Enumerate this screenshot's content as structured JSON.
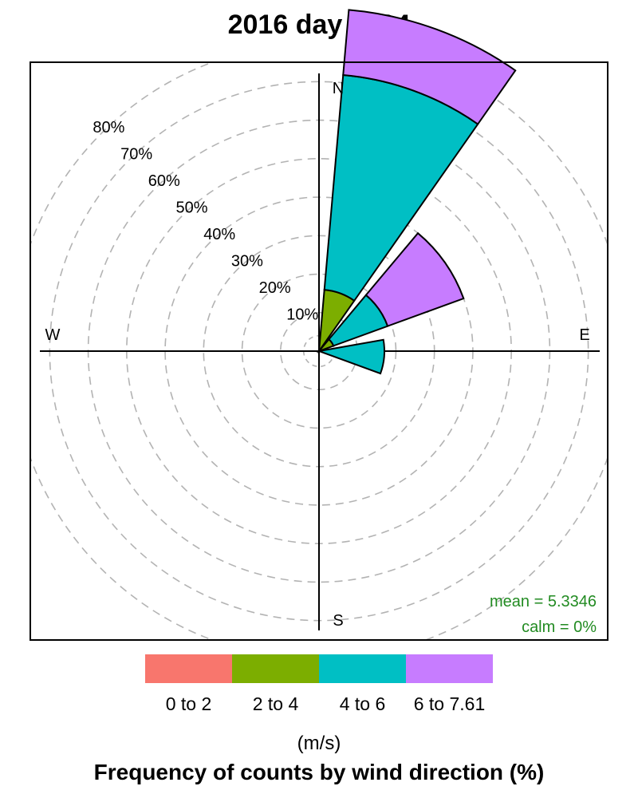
{
  "chart_data": {
    "type": "wind-rose",
    "title": "2016 day #294",
    "footer": "Frequency of counts by wind direction (%)",
    "units_label": "(m/s)",
    "compass": {
      "N": "N",
      "E": "E",
      "S": "S",
      "W": "W"
    },
    "radial_ticks": [
      {
        "value": 10,
        "label": "10%"
      },
      {
        "value": 20,
        "label": "20%"
      },
      {
        "value": 30,
        "label": "30%"
      },
      {
        "value": 40,
        "label": "40%"
      },
      {
        "value": 50,
        "label": "50%"
      },
      {
        "value": 60,
        "label": "60%"
      },
      {
        "value": 70,
        "label": "70%"
      },
      {
        "value": 80,
        "label": "80%"
      }
    ],
    "rmax": 85,
    "grid": true,
    "stats": {
      "mean": "mean = 5.3346",
      "calm": "calm = 0%"
    },
    "bins": [
      {
        "label": "0 to 2",
        "color": "#F8766D"
      },
      {
        "label": "2 to 4",
        "color": "#7CAE00"
      },
      {
        "label": "4 to 6",
        "color": "#00BFC4"
      },
      {
        "label": "6 to 7.61",
        "color": "#C77CFF"
      }
    ],
    "sector_width_deg": 30,
    "sectors": [
      {
        "direction": 20,
        "cumulative": [
          0,
          16,
          72,
          89
        ]
      },
      {
        "direction": 55,
        "cumulative": [
          0,
          4,
          19,
          40
        ]
      },
      {
        "direction": 95,
        "cumulative": [
          0,
          0,
          17,
          17
        ]
      }
    ]
  }
}
